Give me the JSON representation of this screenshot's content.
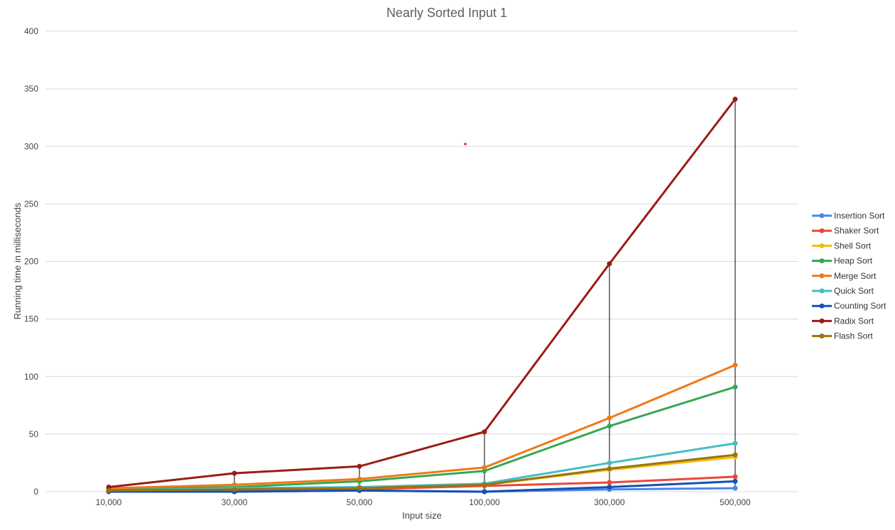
{
  "chart_data": {
    "type": "line",
    "title": "Nearly Sorted Input 1",
    "xlabel": "Input size",
    "ylabel": "Running time in milliseconds",
    "categories": [
      "10,000",
      "30,000",
      "50,000",
      "100,000",
      "300,000",
      "500,000"
    ],
    "ylim": [
      0,
      400
    ],
    "yticks": [
      0,
      50,
      100,
      150,
      200,
      250,
      300,
      350,
      400
    ],
    "grid": true,
    "legend_position": "right",
    "series": [
      {
        "name": "Insertion Sort",
        "color": "#4a86e8",
        "values": [
          0,
          0,
          1,
          0,
          2,
          3
        ]
      },
      {
        "name": "Shaker Sort",
        "color": "#e8483b",
        "values": [
          1,
          1,
          2,
          5,
          8,
          13
        ]
      },
      {
        "name": "Shell Sort",
        "color": "#f4bd0b",
        "values": [
          1,
          2,
          3,
          6,
          19,
          30
        ]
      },
      {
        "name": "Heap Sort",
        "color": "#34a853",
        "values": [
          2,
          4,
          9,
          18,
          57,
          91
        ]
      },
      {
        "name": "Merge Sort",
        "color": "#f07818",
        "values": [
          3,
          6,
          11,
          21,
          64,
          110
        ]
      },
      {
        "name": "Quick Sort",
        "color": "#46bdc6",
        "values": [
          1,
          3,
          4,
          7,
          25,
          42
        ]
      },
      {
        "name": "Counting Sort",
        "color": "#1550b4",
        "values": [
          0,
          0,
          1,
          0,
          4,
          9
        ]
      },
      {
        "name": "Radix Sort",
        "color": "#9b1c16",
        "values": [
          4,
          16,
          22,
          52,
          198,
          341
        ]
      },
      {
        "name": "Flash Sort",
        "color": "#9a7311",
        "values": [
          1,
          2,
          3,
          6,
          20,
          32
        ]
      }
    ],
    "drop_lines": true
  }
}
